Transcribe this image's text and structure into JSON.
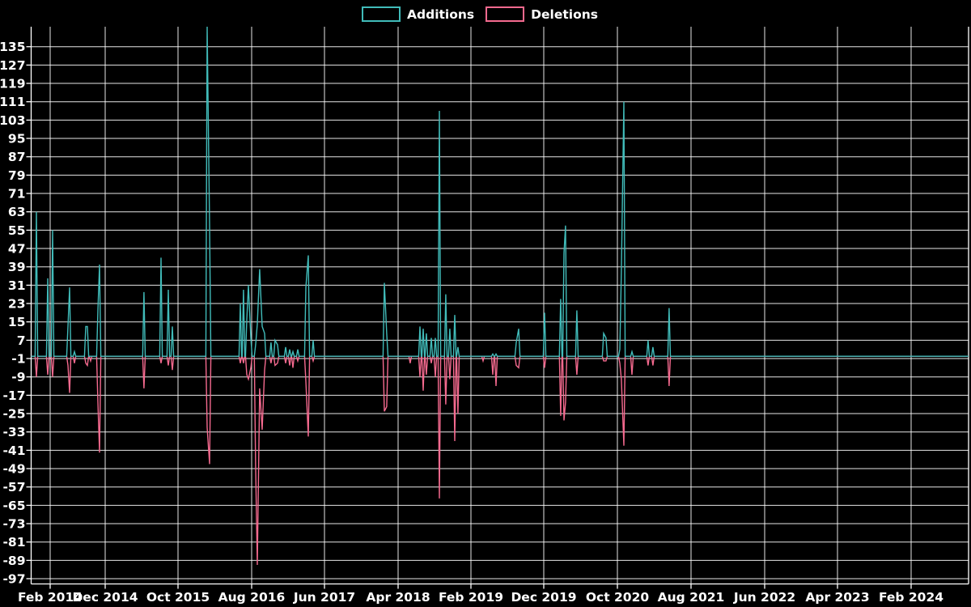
{
  "legend": {
    "items": [
      {
        "label": "Additions",
        "color": "#41bcba"
      },
      {
        "label": "Deletions",
        "color": "#f56a8f"
      }
    ]
  },
  "chart_data": {
    "type": "line",
    "title": "",
    "background_color": "#000000",
    "grid": true,
    "grid_color": "#ffffff",
    "legend_position": "top-center",
    "series": [
      {
        "name": "Additions",
        "color": "#41bcba",
        "value_key": "add"
      },
      {
        "name": "Deletions",
        "color": "#f56a8f",
        "value_key": "del"
      }
    ],
    "baseline_value": 0,
    "x_axis": {
      "tick_labels": [
        "Feb 2014",
        "Dec 2014",
        "Oct 2015",
        "Aug 2016",
        "Jun 2017",
        "Apr 2018",
        "Feb 2019",
        "Dec 2019",
        "Oct 2020",
        "Aug 2021",
        "Jun 2022",
        "Apr 2023",
        "Feb 2024"
      ]
    },
    "y_axis": {
      "ticks": [
        135,
        127,
        119,
        111,
        103,
        95,
        87,
        79,
        71,
        63,
        55,
        47,
        39,
        31,
        23,
        15,
        7,
        -1,
        -9,
        -17,
        -25,
        -33,
        -41,
        -49,
        -57,
        -65,
        -73,
        -81,
        -89,
        -97
      ],
      "range": [
        -99,
        144
      ]
    },
    "points": [
      {
        "t": 2014.134,
        "add": 63,
        "del": -9
      },
      {
        "t": 2014.263,
        "add": 34,
        "del": -8
      },
      {
        "t": 2014.318,
        "add": 55,
        "del": -9
      },
      {
        "t": 2014.493,
        "add": 13,
        "del": -4
      },
      {
        "t": 2014.512,
        "add": 30,
        "del": -16
      },
      {
        "t": 2014.567,
        "add": 2,
        "del": -3
      },
      {
        "t": 2014.696,
        "add": 13,
        "del": -3
      },
      {
        "t": 2014.714,
        "add": 13,
        "del": -4
      },
      {
        "t": 2014.751,
        "add": 0,
        "del": -2
      },
      {
        "t": 2014.834,
        "add": 20,
        "del": -20
      },
      {
        "t": 2014.852,
        "add": 40,
        "del": -42
      },
      {
        "t": 2015.358,
        "add": 28,
        "del": -14
      },
      {
        "t": 2015.552,
        "add": 43,
        "del": -3
      },
      {
        "t": 2015.635,
        "add": 29,
        "del": -4
      },
      {
        "t": 2015.681,
        "add": 13,
        "del": -6
      },
      {
        "t": 2016.076,
        "add": 144,
        "del": -31
      },
      {
        "t": 2016.104,
        "add": 57,
        "del": -47
      },
      {
        "t": 2016.454,
        "add": 23,
        "del": -3
      },
      {
        "t": 2016.49,
        "add": 29,
        "del": -3
      },
      {
        "t": 2016.527,
        "add": 16,
        "del": -8
      },
      {
        "t": 2016.546,
        "add": 31,
        "del": -10
      },
      {
        "t": 2016.573,
        "add": 8,
        "del": -5
      },
      {
        "t": 2016.628,
        "add": 5,
        "del": -48
      },
      {
        "t": 2016.647,
        "add": 14,
        "del": -91
      },
      {
        "t": 2016.674,
        "add": 38,
        "del": -14
      },
      {
        "t": 2016.702,
        "add": 13,
        "del": -32
      },
      {
        "t": 2016.73,
        "add": 10,
        "del": -6
      },
      {
        "t": 2016.803,
        "add": 6,
        "del": -3
      },
      {
        "t": 2016.849,
        "add": 7,
        "del": -4
      },
      {
        "t": 2016.877,
        "add": 5,
        "del": -3
      },
      {
        "t": 2016.969,
        "add": 4,
        "del": -3
      },
      {
        "t": 2017.015,
        "add": 3,
        "del": -4
      },
      {
        "t": 2017.052,
        "add": 2,
        "del": -5
      },
      {
        "t": 2017.107,
        "add": 3,
        "del": -2
      },
      {
        "t": 2017.199,
        "add": 30,
        "del": -11
      },
      {
        "t": 2017.227,
        "add": 44,
        "del": -35
      },
      {
        "t": 2017.282,
        "add": 7,
        "del": -2
      },
      {
        "t": 2018.092,
        "add": 32,
        "del": -24
      },
      {
        "t": 2018.119,
        "add": 10,
        "del": -22
      },
      {
        "t": 2018.386,
        "add": 0,
        "del": -3
      },
      {
        "t": 2018.497,
        "add": 13,
        "del": -9
      },
      {
        "t": 2018.534,
        "add": 12,
        "del": -15
      },
      {
        "t": 2018.57,
        "add": 10,
        "del": -8
      },
      {
        "t": 2018.626,
        "add": 8,
        "del": -3
      },
      {
        "t": 2018.672,
        "add": 8,
        "del": -9
      },
      {
        "t": 2018.718,
        "add": 107,
        "del": -62
      },
      {
        "t": 2018.791,
        "add": 27,
        "del": -21
      },
      {
        "t": 2018.837,
        "add": 12,
        "del": -10
      },
      {
        "t": 2018.893,
        "add": 18,
        "del": -37
      },
      {
        "t": 2018.929,
        "add": 4,
        "del": -25
      },
      {
        "t": 2019.215,
        "add": 0,
        "del": -2
      },
      {
        "t": 2019.325,
        "add": 1,
        "del": -8
      },
      {
        "t": 2019.362,
        "add": 1,
        "del": -13
      },
      {
        "t": 2019.592,
        "add": 6,
        "del": -4
      },
      {
        "t": 2019.62,
        "add": 12,
        "del": -5
      },
      {
        "t": 2019.914,
        "add": 19,
        "del": -5
      },
      {
        "t": 2020.098,
        "add": 25,
        "del": -26
      },
      {
        "t": 2020.135,
        "add": 45,
        "del": -28
      },
      {
        "t": 2020.153,
        "add": 57,
        "del": -20
      },
      {
        "t": 2020.282,
        "add": 20,
        "del": -8
      },
      {
        "t": 2020.586,
        "add": 10,
        "del": -2
      },
      {
        "t": 2020.613,
        "add": 8,
        "del": -2
      },
      {
        "t": 2020.77,
        "add": 3,
        "del": -3
      },
      {
        "t": 2020.788,
        "add": 37,
        "del": -10
      },
      {
        "t": 2020.816,
        "add": 111,
        "del": -39
      },
      {
        "t": 2020.908,
        "add": 2,
        "del": -8
      },
      {
        "t": 2021.092,
        "add": 7,
        "del": -4
      },
      {
        "t": 2021.147,
        "add": 4,
        "del": -4
      },
      {
        "t": 2021.331,
        "add": 21,
        "del": -13
      }
    ]
  }
}
